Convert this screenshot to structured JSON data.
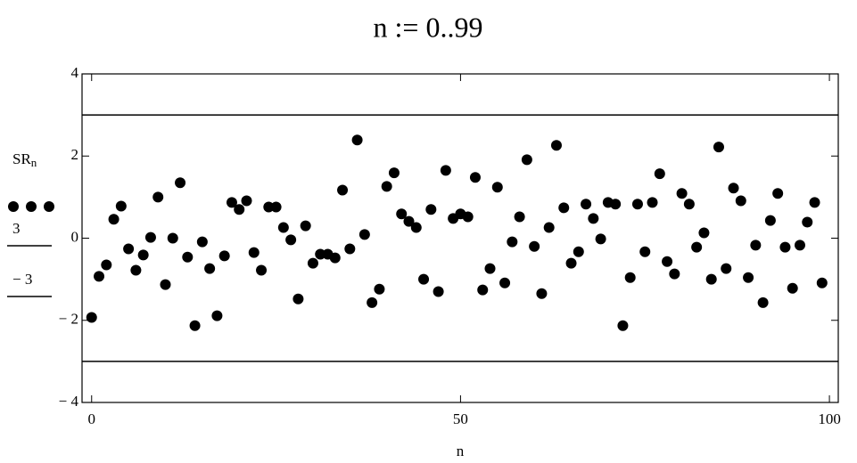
{
  "chart_data": {
    "type": "scatter",
    "title": "n := 0..99",
    "x_label": "n",
    "y_label": "SR",
    "y_label_subscript": "n",
    "x": [
      0,
      1,
      2,
      3,
      4,
      5,
      6,
      7,
      8,
      9,
      10,
      11,
      12,
      13,
      14,
      15,
      16,
      17,
      18,
      19,
      20,
      21,
      22,
      23,
      24,
      25,
      26,
      27,
      28,
      29,
      30,
      31,
      32,
      33,
      34,
      35,
      36,
      37,
      38,
      39,
      40,
      41,
      42,
      43,
      44,
      45,
      46,
      47,
      48,
      49,
      50,
      51,
      52,
      53,
      54,
      55,
      56,
      57,
      58,
      59,
      60,
      61,
      62,
      63,
      64,
      65,
      66,
      67,
      68,
      69,
      70,
      71,
      72,
      73,
      74,
      75,
      76,
      77,
      78,
      79,
      80,
      81,
      82,
      83,
      84,
      85,
      86,
      87,
      88,
      89,
      90,
      91,
      92,
      93,
      94,
      95,
      96,
      97,
      98,
      99
    ],
    "series": [
      {
        "color": "#000000",
        "values": [
          -1.93,
          -0.93,
          -0.65,
          0.46,
          0.78,
          -0.26,
          -0.78,
          -0.41,
          0.02,
          1.0,
          -1.13,
          0.0,
          1.35,
          -0.46,
          -2.13,
          -0.09,
          -0.74,
          -1.89,
          -0.43,
          0.87,
          0.7,
          0.91,
          -0.35,
          -0.78,
          0.76,
          0.76,
          0.26,
          -0.04,
          -1.48,
          0.3,
          -0.61,
          -0.39,
          -0.39,
          -0.48,
          1.17,
          -0.26,
          2.39,
          0.09,
          -1.57,
          -1.24,
          1.26,
          1.59,
          0.59,
          0.41,
          0.26,
          -1.0,
          0.7,
          -1.3,
          1.65,
          0.48,
          0.59,
          0.52,
          1.48,
          -1.26,
          -0.74,
          1.24,
          -1.09,
          -0.09,
          0.52,
          1.91,
          -0.2,
          -1.35,
          0.26,
          2.26,
          0.74,
          -0.61,
          -0.33,
          0.83,
          0.48,
          -0.02,
          0.87,
          0.83,
          -2.13,
          -0.96,
          0.83,
          -0.33,
          0.87,
          1.57,
          -0.57,
          -0.87,
          1.09,
          0.83,
          -0.22,
          0.13,
          -1.0,
          2.22,
          -0.74,
          1.22,
          0.91,
          -0.96,
          -0.17,
          -1.57,
          0.43,
          1.09,
          -0.22,
          -1.22,
          -0.17,
          0.39,
          0.87,
          -1.09
        ]
      }
    ],
    "hlines": [
      {
        "name": "3",
        "value": 3,
        "color": "#000000"
      },
      {
        "name": "− 3",
        "value": -3,
        "color": "#000000"
      }
    ],
    "xlim": [
      -1.3,
      101.2
    ],
    "ylim": [
      -4,
      4
    ],
    "xticks": [
      0,
      50,
      100
    ],
    "yticks": [
      {
        "value": -4,
        "label": "− 4"
      },
      {
        "value": -2,
        "label": "− 2"
      },
      0,
      2,
      4
    ]
  }
}
